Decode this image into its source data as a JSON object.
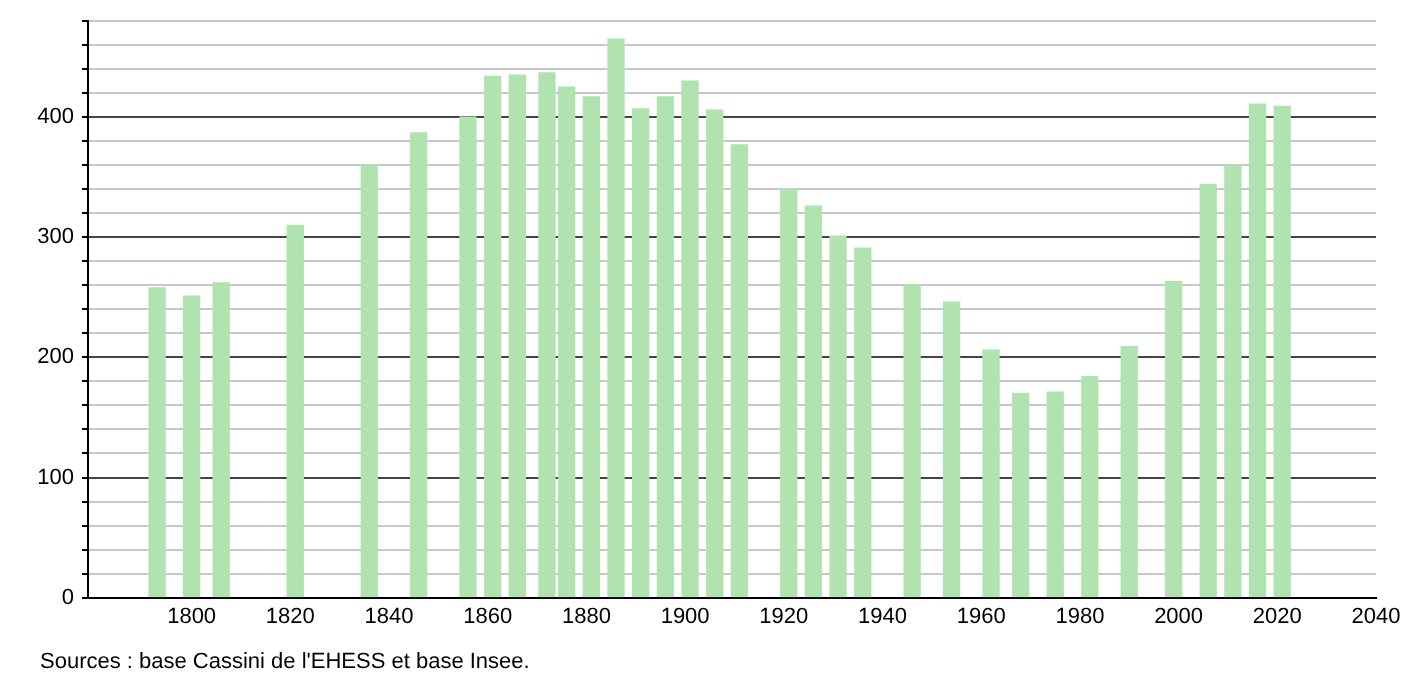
{
  "chart_data": {
    "type": "bar",
    "x": [
      1793,
      1800,
      1806,
      1821,
      1836,
      1846,
      1856,
      1861,
      1866,
      1872,
      1876,
      1881,
      1886,
      1891,
      1896,
      1901,
      1906,
      1911,
      1921,
      1926,
      1931,
      1936,
      1946,
      1954,
      1962,
      1968,
      1975,
      1982,
      1990,
      1999,
      2006,
      2011,
      2016,
      2021
    ],
    "values": [
      258,
      251,
      262,
      310,
      360,
      387,
      400,
      434,
      435,
      437,
      425,
      417,
      465,
      407,
      417,
      430,
      406,
      377,
      340,
      326,
      301,
      291,
      260,
      246,
      206,
      170,
      171,
      184,
      209,
      263,
      344,
      360,
      411,
      409
    ],
    "color": "#b0e3b0",
    "xlim": [
      1779,
      2040
    ],
    "xticks": [
      1800,
      1820,
      1840,
      1860,
      1880,
      1900,
      1920,
      1940,
      1960,
      1980,
      2000,
      2020,
      2040
    ],
    "ylim": [
      0,
      480
    ],
    "yticks": [
      0,
      {
        "value": 20,
        "label": null
      },
      {
        "value": 40,
        "label": null
      },
      {
        "value": 60,
        "label": null
      },
      {
        "value": 80,
        "label": null
      },
      100,
      {
        "value": 120,
        "label": null
      },
      {
        "value": 140,
        "label": null
      },
      {
        "value": 160,
        "label": null
      },
      {
        "value": 180,
        "label": null
      },
      200,
      {
        "value": 220,
        "label": null
      },
      {
        "value": 240,
        "label": null
      },
      {
        "value": 260,
        "label": null
      },
      {
        "value": 280,
        "label": null
      },
      300,
      {
        "value": 320,
        "label": null
      },
      {
        "value": 340,
        "label": null
      },
      {
        "value": 360,
        "label": null
      },
      {
        "value": 380,
        "label": null
      },
      400,
      {
        "value": 420,
        "label": null
      },
      {
        "value": 440,
        "label": null
      },
      {
        "value": 460,
        "label": null
      },
      {
        "value": 480,
        "label": null
      }
    ],
    "grid": "y",
    "annotations": [
      "Sources : base Cassini de l'EHESS et base Insee."
    ]
  }
}
